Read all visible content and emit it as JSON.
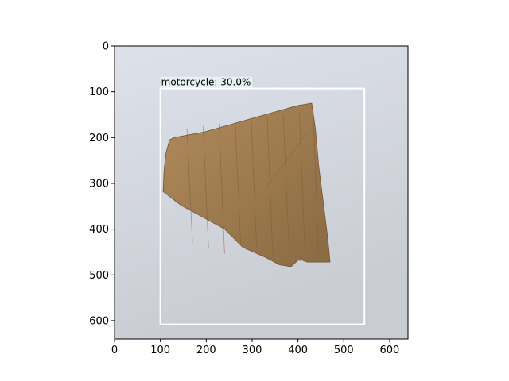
{
  "chart_data": {
    "type": "image",
    "image_size": [
      640,
      640
    ],
    "xlim": [
      0,
      640
    ],
    "ylim": [
      640,
      0
    ],
    "x_ticks": [
      0,
      100,
      200,
      300,
      400,
      500,
      600
    ],
    "y_ticks": [
      0,
      100,
      200,
      300,
      400,
      500,
      600
    ],
    "grid": false,
    "image_content": "torn piece of brown corrugated cardboard on a light grey background",
    "colors": {
      "background_top": "#dde1ea",
      "background_bottom": "#c9ccd2",
      "cardboard_light": "#b08a5c",
      "cardboard_dark": "#8a6a42",
      "box_stroke": "#ffffff",
      "label_bg": "#e6f2f2"
    },
    "detections": [
      {
        "label": "motorcycle: 30.0%",
        "class": "motorcycle",
        "score_percent": 30.0,
        "box": {
          "x_min": 100,
          "y_min": 93,
          "x_max": 545,
          "y_max": 608
        }
      }
    ],
    "cardboard_outline": [
      [
        430,
        125
      ],
      [
        400,
        130
      ],
      [
        335,
        148
      ],
      [
        265,
        168
      ],
      [
        195,
        188
      ],
      [
        130,
        200
      ],
      [
        120,
        205
      ],
      [
        112,
        235
      ],
      [
        108,
        272
      ],
      [
        106,
        318
      ],
      [
        145,
        348
      ],
      [
        200,
        378
      ],
      [
        240,
        400
      ],
      [
        280,
        440
      ],
      [
        330,
        462
      ],
      [
        360,
        478
      ],
      [
        385,
        482
      ],
      [
        400,
        468
      ],
      [
        410,
        468
      ],
      [
        420,
        472
      ],
      [
        470,
        472
      ],
      [
        465,
        420
      ],
      [
        455,
        340
      ],
      [
        445,
        260
      ],
      [
        438,
        180
      ]
    ]
  }
}
